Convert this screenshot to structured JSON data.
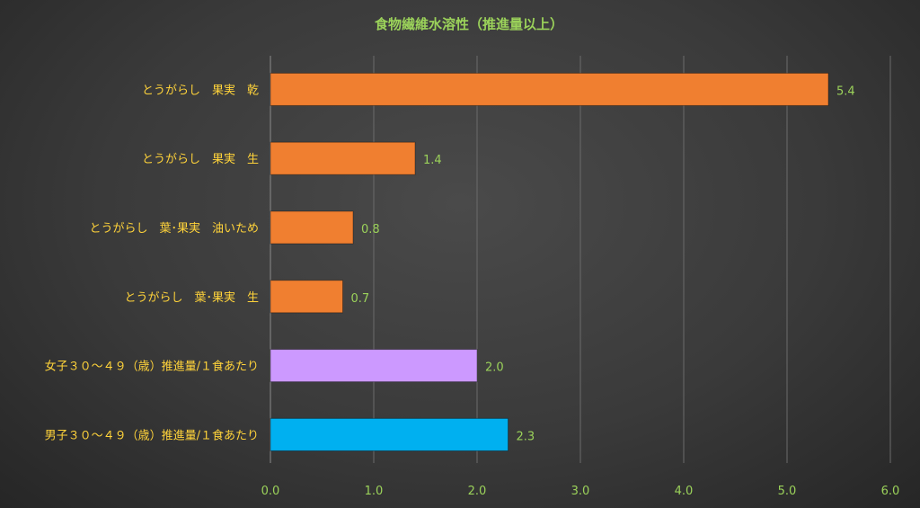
{
  "chart_data": {
    "type": "bar",
    "orientation": "horizontal",
    "title": "食物繊維水溶性（推進量以上）",
    "categories": [
      "とうがらし　果実　乾",
      "とうがらし　果実　生",
      "とうがらし　葉･果実　油いため",
      "とうがらし　葉･果実　生",
      "女子３０～４９（歳）推進量/１食あたり",
      "男子３０～４９（歳）推進量/１食あたり"
    ],
    "values": [
      5.4,
      1.4,
      0.8,
      0.7,
      2.0,
      2.3
    ],
    "value_labels": [
      "5.4",
      "1.4",
      "0.8",
      "0.7",
      "2.0",
      "2.3"
    ],
    "bar_colors": [
      "#f07f30",
      "#f07f30",
      "#f07f30",
      "#f07f30",
      "#cc99ff",
      "#00b0f0"
    ],
    "xlim": [
      0,
      6
    ],
    "x_ticks": [
      "0.0",
      "1.0",
      "2.0",
      "3.0",
      "4.0",
      "5.0",
      "6.0"
    ],
    "grid": true,
    "colors": {
      "title": "#9bd25a",
      "category_label": "#ffd33a",
      "tick_label": "#9bd25a",
      "value_label": "#9bd25a",
      "gridline": "#6b6b6b",
      "axis": "#8a8a8a"
    }
  }
}
